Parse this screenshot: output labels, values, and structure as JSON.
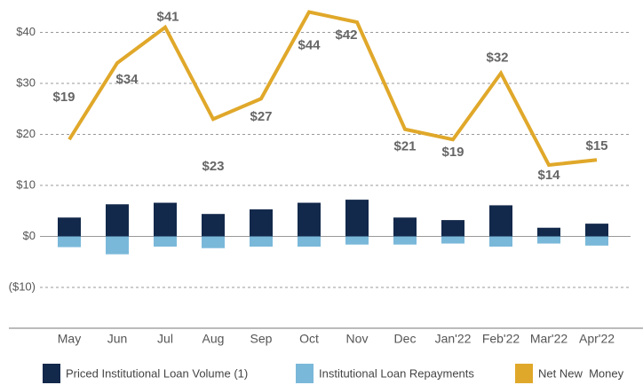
{
  "chart_data": {
    "type": "bar-line",
    "categories": [
      "May",
      "Jun",
      "Jul",
      "Aug",
      "Sep",
      "Oct",
      "Nov",
      "Dec",
      "Jan'22",
      "Feb'22",
      "Mar'22",
      "Apr'22"
    ],
    "series": [
      {
        "name": "Priced Institutional Loan Volume (1)",
        "type": "bar",
        "color": "#13294b",
        "values": [
          3.7,
          6.3,
          6.6,
          4.4,
          5.3,
          6.6,
          7.2,
          3.7,
          3.2,
          6.1,
          1.7,
          2.5
        ]
      },
      {
        "name": "Institutional Loan Repayments",
        "type": "bar",
        "color": "#7ab8d9",
        "values": [
          -2.1,
          -3.5,
          -2.0,
          -2.3,
          -2.0,
          -2.0,
          -1.6,
          -1.6,
          -1.4,
          -2.0,
          -1.4,
          -1.8
        ]
      },
      {
        "name": "Net New  Money",
        "type": "line",
        "color": "#e0a82a",
        "values": [
          19,
          34,
          41,
          23,
          27,
          44,
          42,
          21,
          19,
          32,
          14,
          15
        ],
        "value_labels": [
          "$19",
          "$34",
          "$41",
          "$23",
          "$27",
          "$44",
          "$42",
          "$21",
          "$19",
          "$32",
          "$14",
          "$15"
        ]
      }
    ],
    "ylim": [
      -18,
      46
    ],
    "yticks": [
      {
        "value": 40,
        "label": "$40"
      },
      {
        "value": 30,
        "label": "$30"
      },
      {
        "value": 20,
        "label": "$20"
      },
      {
        "value": 10,
        "label": "$10"
      },
      {
        "value": 0,
        "label": "$0"
      },
      {
        "value": -10,
        "label": "($10)"
      }
    ],
    "grid": true
  }
}
